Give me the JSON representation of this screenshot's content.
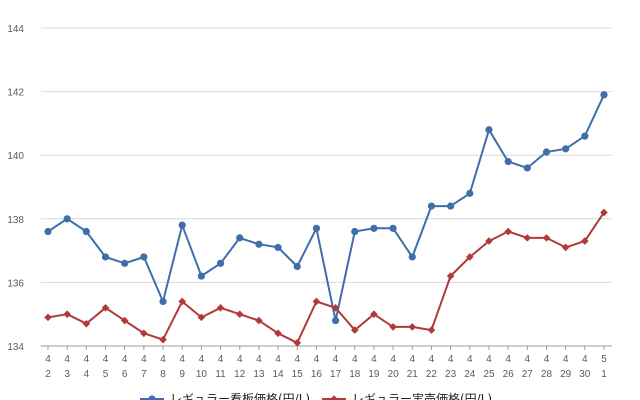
{
  "chart_data": {
    "type": "line",
    "title": "",
    "xlabel": "",
    "ylabel": "",
    "ylim": [
      134,
      144
    ],
    "yticks": [
      134,
      136,
      138,
      140,
      142,
      144
    ],
    "grid": "horizontal",
    "legend_position": "bottom",
    "categories": [
      {
        "month": "4",
        "day": "2"
      },
      {
        "month": "4",
        "day": "3"
      },
      {
        "month": "4",
        "day": "4"
      },
      {
        "month": "4",
        "day": "5"
      },
      {
        "month": "4",
        "day": "6"
      },
      {
        "month": "4",
        "day": "7"
      },
      {
        "month": "4",
        "day": "8"
      },
      {
        "month": "4",
        "day": "9"
      },
      {
        "month": "4",
        "day": "10"
      },
      {
        "month": "4",
        "day": "11"
      },
      {
        "month": "4",
        "day": "12"
      },
      {
        "month": "4",
        "day": "13"
      },
      {
        "month": "4",
        "day": "14"
      },
      {
        "month": "4",
        "day": "15"
      },
      {
        "month": "4",
        "day": "16"
      },
      {
        "month": "4",
        "day": "17"
      },
      {
        "month": "4",
        "day": "18"
      },
      {
        "month": "4",
        "day": "19"
      },
      {
        "month": "4",
        "day": "20"
      },
      {
        "month": "4",
        "day": "21"
      },
      {
        "month": "4",
        "day": "22"
      },
      {
        "month": "4",
        "day": "23"
      },
      {
        "month": "4",
        "day": "24"
      },
      {
        "month": "4",
        "day": "25"
      },
      {
        "month": "4",
        "day": "26"
      },
      {
        "month": "4",
        "day": "27"
      },
      {
        "month": "4",
        "day": "28"
      },
      {
        "month": "4",
        "day": "29"
      },
      {
        "month": "4",
        "day": "30"
      },
      {
        "month": "5",
        "day": "1"
      }
    ],
    "series": [
      {
        "name": "レギュラー看板価格(円/L)",
        "color": "#3f6eaa",
        "marker": "circle",
        "values": [
          137.6,
          138.0,
          137.6,
          136.8,
          136.6,
          136.8,
          135.4,
          137.8,
          136.2,
          136.6,
          137.4,
          137.2,
          137.1,
          136.5,
          137.7,
          134.8,
          137.6,
          137.7,
          137.7,
          136.8,
          138.4,
          138.4,
          138.8,
          140.8,
          139.8,
          139.6,
          140.1,
          140.2,
          140.6,
          141.9
        ]
      },
      {
        "name": "レギュラー実売価格(円/L)",
        "color": "#b03a3a",
        "marker": "diamond",
        "values": [
          134.9,
          135.0,
          134.7,
          135.2,
          134.8,
          134.4,
          134.2,
          135.4,
          134.9,
          135.2,
          135.0,
          134.8,
          134.4,
          134.1,
          135.4,
          135.2,
          134.5,
          135.0,
          134.6,
          134.6,
          134.5,
          136.2,
          136.8,
          137.3,
          137.6,
          137.4,
          137.4,
          137.1,
          137.3,
          138.2
        ]
      }
    ]
  }
}
